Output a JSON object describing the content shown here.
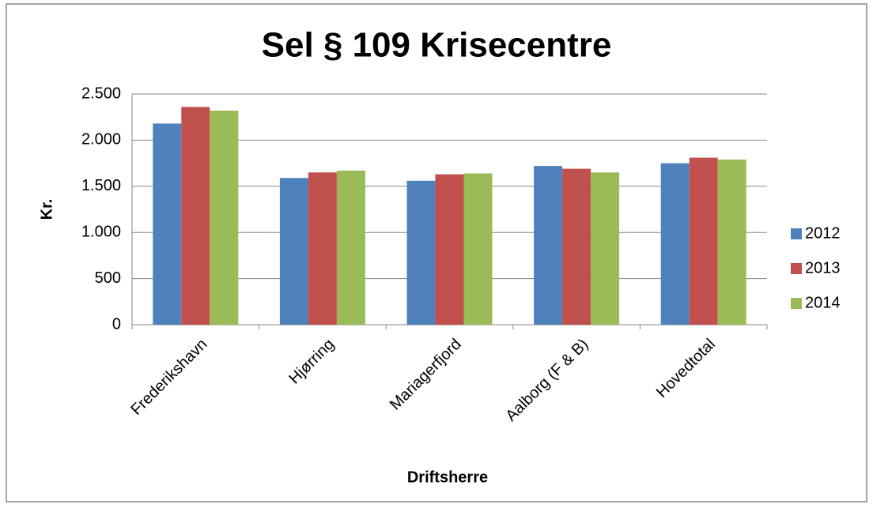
{
  "chart_data": {
    "type": "bar",
    "title": "Sel § 109 Krisecentre",
    "x_label": "Driftsherre",
    "y_label": "Kr.",
    "categories": [
      "Frederikshavn",
      "Hjørring",
      "Mariagerfjord",
      "Aalborg (F & B)",
      "Hovedtotal"
    ],
    "series": [
      {
        "name": "2012",
        "color": "#4f81bd",
        "values": [
          2180,
          1590,
          1560,
          1720,
          1750
        ]
      },
      {
        "name": "2013",
        "color": "#c0504d",
        "values": [
          2360,
          1650,
          1630,
          1690,
          1810
        ]
      },
      {
        "name": "2014",
        "color": "#9bbb59",
        "values": [
          2320,
          1670,
          1640,
          1650,
          1790
        ]
      }
    ],
    "ylim": [
      0,
      2500
    ],
    "yticks": [
      0,
      500,
      {
        "value": 1000,
        "label": "1.000"
      },
      {
        "value": 1500,
        "label": "1.500"
      },
      {
        "value": 2000,
        "label": "2.000"
      },
      {
        "value": 2500,
        "label": "2.500"
      }
    ],
    "grid": true,
    "legend": "right"
  }
}
